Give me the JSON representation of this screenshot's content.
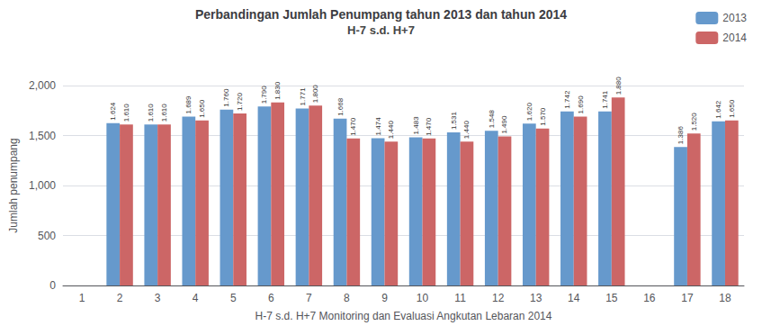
{
  "chart_data": {
    "type": "bar",
    "title": "Perbandingan Jumlah Penumpang tahun 2013 dan tahun 2014",
    "subtitle": "H-7 s.d. H+7",
    "xlabel": "H-7 s.d. H+7 Monitoring dan Evaluasi Angkutan Lebaran 2014",
    "ylabel": "Jumlah penumpang",
    "categories": [
      1,
      2,
      3,
      4,
      5,
      6,
      7,
      8,
      9,
      10,
      11,
      12,
      13,
      14,
      15,
      16,
      17,
      18
    ],
    "series": [
      {
        "name": "2013",
        "color": "#6699CC",
        "values": [
          null,
          1624,
          1610,
          1689,
          1760,
          1790,
          1771,
          1668,
          1474,
          1483,
          1531,
          1548,
          1620,
          1742,
          1741,
          null,
          1386,
          1642
        ],
        "value_labels": [
          null,
          "1.624",
          "1.610",
          "1.689",
          "1.760",
          "1.790",
          "1.771",
          "1.668",
          "1.474",
          "1.483",
          "1.531",
          "1.548",
          "1.620",
          "1.742",
          "1.741",
          null,
          "1.386",
          "1.642"
        ]
      },
      {
        "name": "2014",
        "color": "#CC6666",
        "values": [
          null,
          1610,
          1610,
          1650,
          1720,
          1830,
          1800,
          1470,
          1440,
          1470,
          1440,
          1490,
          1570,
          1690,
          1880,
          null,
          1520,
          1650
        ],
        "value_labels": [
          null,
          "1.610",
          "1.610",
          "1.650",
          "1.720",
          "1.830",
          "1.800",
          "1.470",
          "1.440",
          "1.470",
          "1.440",
          "1.490",
          "1.570",
          "1.690",
          "1.880",
          null,
          "1.520",
          "1.650"
        ]
      }
    ],
    "ylim": [
      0,
      2000
    ],
    "yticks": [
      0,
      500,
      1000,
      1500,
      2000
    ],
    "grid": true,
    "legend": "upper right",
    "data_labels": true
  }
}
